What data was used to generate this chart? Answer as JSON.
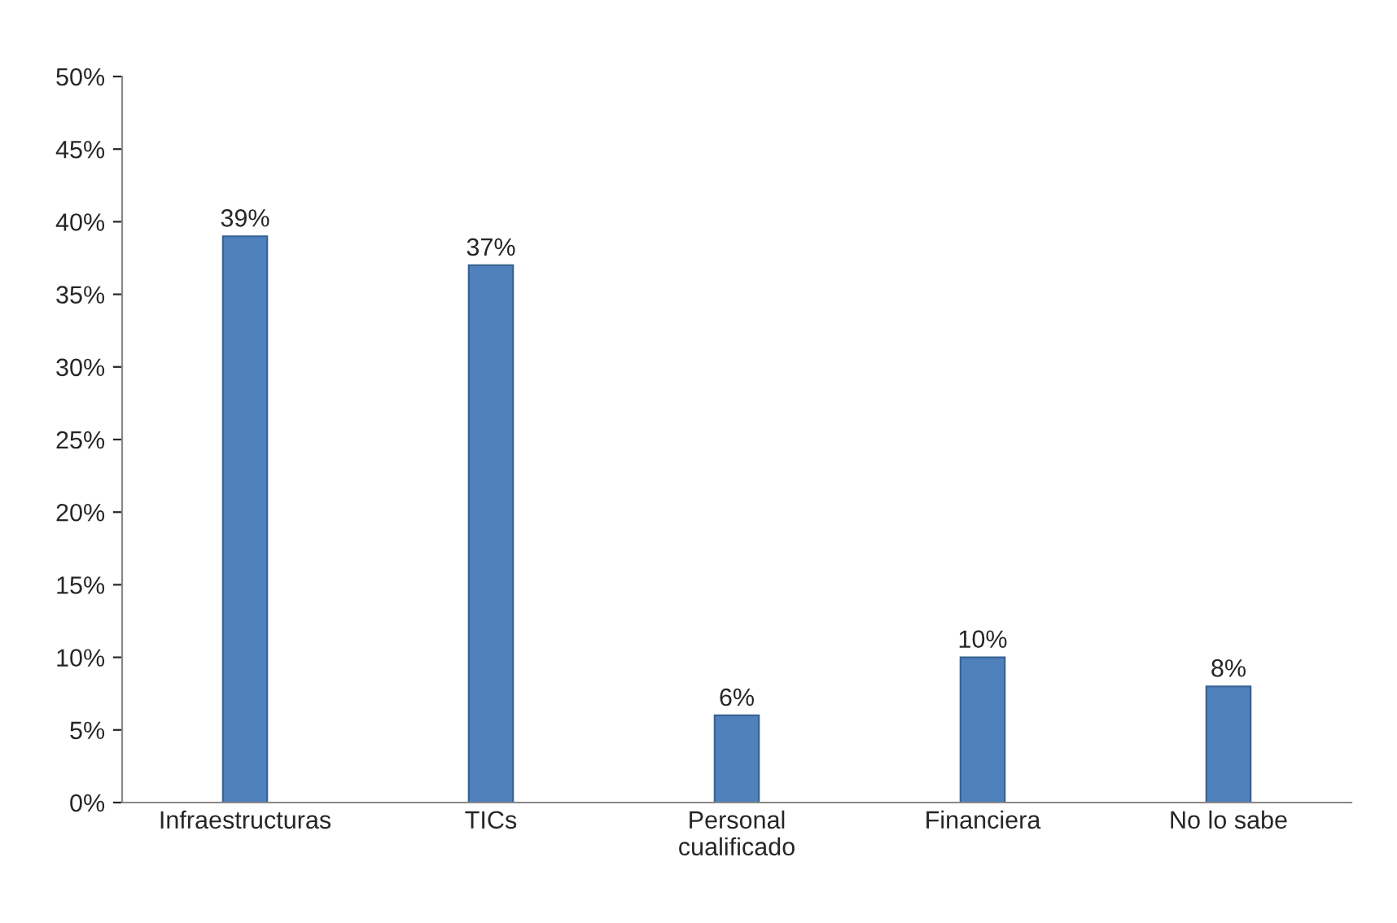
{
  "chart_data": {
    "type": "bar",
    "categories": [
      "Infraestructuras",
      "TICs",
      "Personal\ncualificado",
      "Financiera",
      "No lo sabe"
    ],
    "values": [
      39,
      37,
      6,
      10,
      8
    ],
    "value_labels": [
      "39%",
      "37%",
      "6%",
      "10%",
      "8%"
    ],
    "color": "#4f81bd",
    "ylim": [
      0,
      50
    ],
    "yticks": [
      {
        "value": 0,
        "label": "0%"
      },
      {
        "value": 5,
        "label": "5%"
      },
      {
        "value": 10,
        "label": "10%"
      },
      {
        "value": 15,
        "label": "15%"
      },
      {
        "value": 20,
        "label": "20%"
      },
      {
        "value": 25,
        "label": "25%"
      },
      {
        "value": 30,
        "label": "30%"
      },
      {
        "value": 35,
        "label": "35%"
      },
      {
        "value": 40,
        "label": "40%"
      },
      {
        "value": 45,
        "label": "45%"
      },
      {
        "value": 50,
        "label": "50%"
      }
    ],
    "grid": false
  }
}
